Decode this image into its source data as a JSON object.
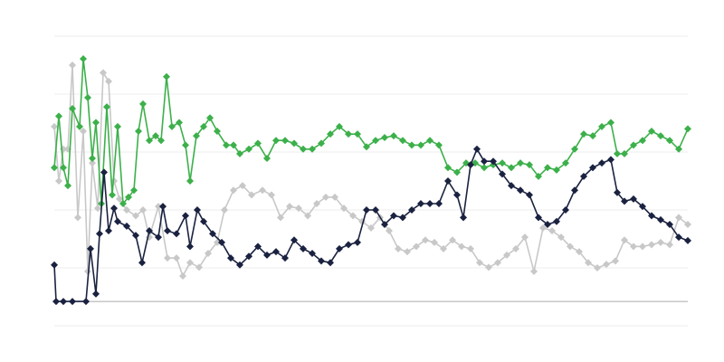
{
  "chart_data": {
    "type": "line",
    "xlim": [
      0,
      700
    ],
    "ylim": [
      -4.2,
      45.8
    ],
    "yticks": [
      -4.2,
      5.8,
      15.8,
      25.8,
      35.8,
      45.8
    ],
    "grid": true,
    "series": [
      {
        "color": "#c8c8c8",
        "x": [
          0,
          5,
          10,
          15,
          20,
          26,
          32,
          37,
          42,
          48,
          54,
          60,
          66,
          72,
          80,
          90,
          98,
          105,
          115,
          125,
          135,
          142,
          150,
          160,
          170,
          180,
          188,
          198,
          208,
          218,
          230,
          240,
          250,
          260,
          270,
          280,
          290,
          300,
          310,
          320,
          330,
          340,
          350,
          360,
          370,
          380,
          390,
          400,
          410,
          420,
          430,
          440,
          450,
          460,
          470,
          480,
          490,
          500,
          510,
          520,
          530,
          540,
          550,
          560,
          570,
          580,
          590,
          600,
          610,
          620,
          630,
          640,
          650,
          660,
          670,
          680,
          690,
          700
        ],
        "values": [
          30.2,
          20.8,
          26.3,
          26.3,
          40.8,
          14.5,
          29.4,
          5.2,
          23.9,
          16.1,
          39.5,
          38.0,
          20.8,
          17.7,
          15.8,
          14.8,
          15.8,
          11.1,
          16.4,
          7.5,
          7.5,
          4.4,
          6.7,
          5.9,
          8.3,
          10.2,
          15.8,
          19.2,
          20.0,
          18.4,
          19.2,
          18.4,
          14.5,
          16.4,
          16.1,
          14.8,
          16.9,
          18.0,
          18.0,
          16.1,
          14.8,
          13.8,
          12.7,
          14.5,
          12.2,
          9.1,
          8.6,
          9.5,
          10.6,
          10.2,
          9.1,
          10.6,
          9.5,
          9.1,
          6.7,
          5.9,
          6.7,
          8.0,
          9.1,
          11.1,
          5.2,
          12.7,
          12.2,
          11.1,
          9.5,
          8.6,
          6.7,
          5.8,
          6.4,
          7.0,
          10.6,
          9.5,
          9.5,
          9.8,
          10.2,
          9.8,
          14.5,
          13.3
        ]
      },
      {
        "color": "#3cb04a",
        "x": [
          0,
          5,
          10,
          15,
          20,
          28,
          32,
          37,
          42,
          46,
          52,
          58,
          64,
          70,
          76,
          82,
          88,
          93,
          98,
          105,
          112,
          118,
          124,
          130,
          138,
          145,
          150,
          157,
          165,
          172,
          180,
          190,
          198,
          205,
          215,
          225,
          235,
          245,
          255,
          265,
          275,
          285,
          295,
          305,
          315,
          325,
          335,
          345,
          355,
          365,
          375,
          385,
          395,
          405,
          415,
          425,
          435,
          445,
          455,
          465,
          475,
          485,
          495,
          505,
          515,
          525,
          535,
          545,
          555,
          565,
          575,
          585,
          595,
          605,
          615,
          622,
          630,
          640,
          650,
          660,
          670,
          680,
          690,
          700
        ],
        "values": [
          23.1,
          32.0,
          23.1,
          20.0,
          33.3,
          30.2,
          41.9,
          35.2,
          24.7,
          30.9,
          16.9,
          33.6,
          18.4,
          30.2,
          16.9,
          18.0,
          19.2,
          29.4,
          34.1,
          27.8,
          28.6,
          27.8,
          38.8,
          30.2,
          30.9,
          27.0,
          20.8,
          28.6,
          30.2,
          31.7,
          29.4,
          27.0,
          27.0,
          25.5,
          26.3,
          27.3,
          24.7,
          27.8,
          27.8,
          27.3,
          26.3,
          26.3,
          27.3,
          28.9,
          30.2,
          28.9,
          28.9,
          26.7,
          27.8,
          28.3,
          28.6,
          27.8,
          27.0,
          27.0,
          27.8,
          27.0,
          23.1,
          22.3,
          23.9,
          23.9,
          23.1,
          23.6,
          23.9,
          23.1,
          23.9,
          23.6,
          21.6,
          23.1,
          22.7,
          23.9,
          26.3,
          28.9,
          28.6,
          30.2,
          30.9,
          25.5,
          25.5,
          27.0,
          27.8,
          29.4,
          28.6,
          27.8,
          26.3,
          29.8
        ]
      },
      {
        "color": "#1a2240",
        "x": [
          0,
          2,
          10,
          20,
          35,
          40,
          46,
          50,
          55,
          60,
          66,
          70,
          80,
          90,
          97,
          105,
          115,
          120,
          125,
          135,
          145,
          150,
          158,
          165,
          175,
          185,
          195,
          205,
          215,
          225,
          235,
          245,
          255,
          265,
          275,
          285,
          295,
          305,
          315,
          325,
          335,
          345,
          355,
          365,
          375,
          385,
          395,
          405,
          415,
          425,
          435,
          445,
          452,
          460,
          467,
          475,
          485,
          495,
          505,
          515,
          525,
          535,
          545,
          555,
          565,
          575,
          585,
          595,
          605,
          615,
          622,
          630,
          640,
          650,
          660,
          670,
          680,
          690,
          700
        ],
        "values": [
          6.3,
          0,
          0,
          0,
          0,
          9.1,
          1.3,
          11.7,
          22.3,
          12.2,
          16.1,
          13.8,
          13.0,
          11.4,
          6.7,
          12.2,
          11.1,
          16.4,
          12.2,
          11.7,
          14.8,
          9.5,
          15.8,
          13.8,
          11.7,
          10.2,
          7.5,
          6.3,
          7.8,
          9.5,
          8.0,
          8.6,
          7.5,
          10.6,
          9.1,
          8.3,
          7.0,
          6.7,
          9.1,
          9.8,
          10.2,
          15.8,
          15.8,
          13.3,
          14.8,
          14.5,
          15.8,
          16.9,
          16.9,
          16.9,
          20.8,
          18.4,
          14.5,
          23.6,
          26.3,
          24.2,
          24.2,
          22.0,
          20.0,
          19.2,
          18.4,
          14.5,
          13.3,
          13.8,
          15.8,
          19.2,
          21.6,
          23.1,
          23.9,
          24.5,
          18.8,
          17.3,
          17.7,
          16.4,
          14.8,
          14.1,
          13.3,
          11.1,
          10.5
        ]
      }
    ]
  }
}
